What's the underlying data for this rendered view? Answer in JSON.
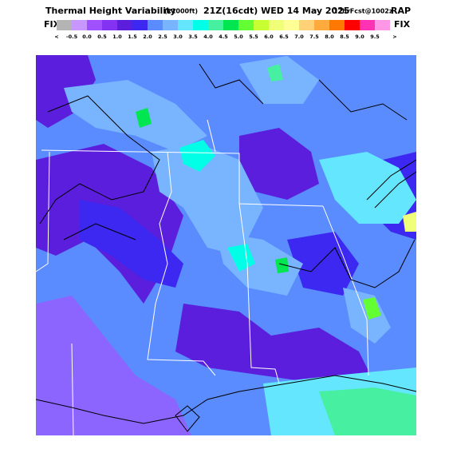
{
  "header": {
    "title": "Thermal Height Variability",
    "units": "(x1000ft)",
    "valid_time": "21Z(16cdt) WED 14 May 2025",
    "forecast": "12hrFcst@1002z",
    "model": "RAP"
  },
  "colorbar": {
    "left_label": "FIX",
    "right_label": "FIX",
    "colors": [
      "#b4b4b4",
      "#c896ff",
      "#a050ff",
      "#8232f0",
      "#5a1edc",
      "#3c28f0",
      "#5a8cff",
      "#78b4ff",
      "#64e6ff",
      "#00ffe6",
      "#46f0a0",
      "#00e650",
      "#64ff32",
      "#c8ff32",
      "#f0ff78",
      "#ffff96",
      "#ffd278",
      "#ffaa3c",
      "#ff7800",
      "#ff0000",
      "#ff32b4",
      "#ff96e6"
    ],
    "labels": [
      "<",
      "-0.5",
      "0.0",
      "0.5",
      "1.0",
      "1.5",
      "2.0",
      "2.5",
      "3.0",
      "3.5",
      "4.0",
      "4.5",
      "5.0",
      "5.5",
      "6.0",
      "6.5",
      "7.0",
      "7.5",
      "8.0",
      "8.5",
      "9.0",
      "9.5",
      ">"
    ]
  }
}
